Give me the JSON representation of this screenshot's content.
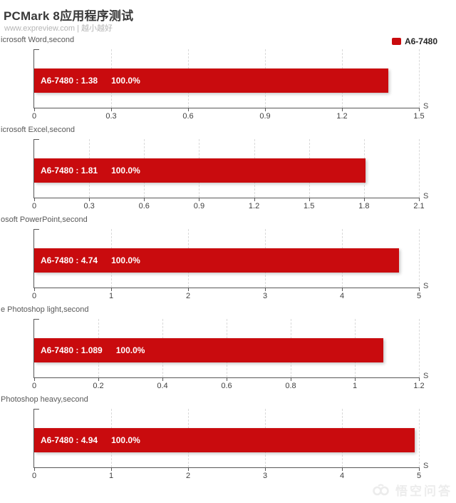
{
  "header": {
    "title": "PCMark 8应用程序测试",
    "subtitle": "www.expreview.com | 越小越好"
  },
  "legend": {
    "label": "A6-7480"
  },
  "colors": {
    "bar": "#c90b0e",
    "axis": "#595959",
    "gridline": "#d9d9d9",
    "tick_label": "#404040",
    "title": "#383838",
    "subtitle": "#b5b5b5",
    "watermark": "#ececec"
  },
  "watermark": {
    "text": "悟空问答",
    "logo": "wukong-monkey-logo"
  },
  "chart_data": [
    {
      "type": "bar",
      "orientation": "horizontal",
      "title": "icrosoft Word,second",
      "unit": "S",
      "xlim": [
        0,
        1.5
      ],
      "tick_values": [
        0,
        0.3,
        0.6,
        0.9,
        1.2,
        1.5
      ],
      "tick_labels": [
        "0",
        "0.3",
        "0.6",
        "0.9",
        "1.2",
        "1.5"
      ],
      "grid": true,
      "series": [
        {
          "name": "A6-7480",
          "value": 1.38,
          "value_label": "A6-7480 : 1.38",
          "percent_label": "100.0%"
        }
      ]
    },
    {
      "type": "bar",
      "orientation": "horizontal",
      "title": "icrosoft Excel,second",
      "unit": "S",
      "xlim": [
        0,
        2.1
      ],
      "tick_values": [
        0,
        0.3,
        0.6,
        0.9,
        1.2,
        1.5,
        1.8,
        2.1
      ],
      "tick_labels": [
        "0",
        "0.3",
        "0.6",
        "0.9",
        "1.2",
        "1.5",
        "1.8",
        "2.1"
      ],
      "grid": true,
      "series": [
        {
          "name": "A6-7480",
          "value": 1.81,
          "value_label": "A6-7480 : 1.81",
          "percent_label": "100.0%"
        }
      ]
    },
    {
      "type": "bar",
      "orientation": "horizontal",
      "title": "osoft PowerPoint,second",
      "unit": "S",
      "xlim": [
        0,
        5
      ],
      "tick_values": [
        0,
        1,
        2,
        3,
        4,
        5
      ],
      "tick_labels": [
        "0",
        "1",
        "2",
        "3",
        "4",
        "5"
      ],
      "grid": true,
      "series": [
        {
          "name": "A6-7480",
          "value": 4.74,
          "value_label": "A6-7480 : 4.74",
          "percent_label": "100.0%"
        }
      ]
    },
    {
      "type": "bar",
      "orientation": "horizontal",
      "title": "e Photoshop light,second",
      "unit": "S",
      "xlim": [
        0,
        1.2
      ],
      "tick_values": [
        0,
        0.2,
        0.4,
        0.6,
        0.8,
        1,
        1.2
      ],
      "tick_labels": [
        "0",
        "0.2",
        "0.4",
        "0.6",
        "0.8",
        "1",
        "1.2"
      ],
      "grid": true,
      "series": [
        {
          "name": "A6-7480",
          "value": 1.089,
          "value_label": "A6-7480 : 1.089",
          "percent_label": "100.0%"
        }
      ]
    },
    {
      "type": "bar",
      "orientation": "horizontal",
      "title": "Photoshop heavy,second",
      "unit": "S",
      "xlim": [
        0,
        5
      ],
      "tick_values": [
        0,
        1,
        2,
        3,
        4,
        5
      ],
      "tick_labels": [
        "0",
        "1",
        "2",
        "3",
        "4",
        "5"
      ],
      "grid": true,
      "series": [
        {
          "name": "A6-7480",
          "value": 4.94,
          "value_label": "A6-7480 : 4.94",
          "percent_label": "100.0%"
        }
      ]
    }
  ]
}
